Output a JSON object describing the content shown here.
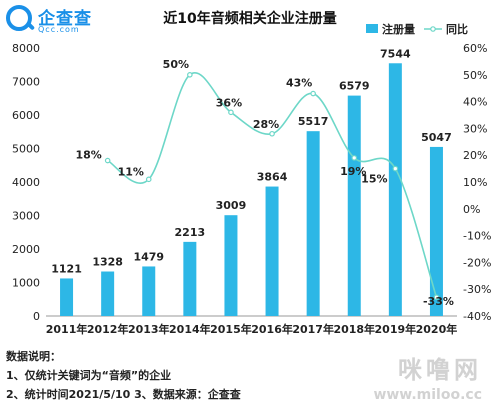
{
  "logo": {
    "name": "企查查",
    "sub": "Qcc.com"
  },
  "notes": {
    "heading": "数据说明：",
    "line1": "1、仅统计关键词为“音频”的企业",
    "line2": "2、统计时间2021/5/10   3、数据来源：企查查"
  },
  "watermark": {
    "big": "咪噜网",
    "small": "www.miloo.cc"
  },
  "colors": {
    "bar": "#2db7e6",
    "line": "#6dd7c8",
    "axis": "#999999"
  },
  "chart_data": {
    "type": "bar",
    "title": "近10年音频相关企业注册量",
    "categories": [
      "2011年",
      "2012年",
      "2013年",
      "2014年",
      "2015年",
      "2016年",
      "2017年",
      "2018年",
      "2019年",
      "2020年"
    ],
    "series": [
      {
        "name": "注册量",
        "type": "bar",
        "axis": "left",
        "values": [
          1121,
          1328,
          1479,
          2213,
          3009,
          3864,
          5517,
          6579,
          7544,
          5047
        ],
        "labels": [
          "1121",
          "1328",
          "1479",
          "2213",
          "3009",
          "3864",
          "5517",
          "6579",
          "7544",
          "5047"
        ]
      },
      {
        "name": "同比",
        "type": "line",
        "axis": "right",
        "values": [
          null,
          18,
          11,
          50,
          36,
          28,
          43,
          19,
          15,
          -33
        ],
        "labels": [
          "",
          "18%",
          "11%",
          "50%",
          "36%",
          "28%",
          "43%",
          "19%",
          "15%",
          "-33%"
        ]
      }
    ],
    "y_left": {
      "min": 0,
      "max": 8000,
      "ticks": [
        "0",
        "1000",
        "2000",
        "3000",
        "4000",
        "5000",
        "6000",
        "7000",
        "8000"
      ]
    },
    "y_right": {
      "min": -40,
      "max": 60,
      "ticks": [
        "-40%",
        "-30%",
        "-20%",
        "-10%",
        "0%",
        "10%",
        "20%",
        "30%",
        "40%",
        "50%",
        "60%"
      ]
    },
    "legend": {
      "position": "top-right"
    },
    "grid": false
  }
}
